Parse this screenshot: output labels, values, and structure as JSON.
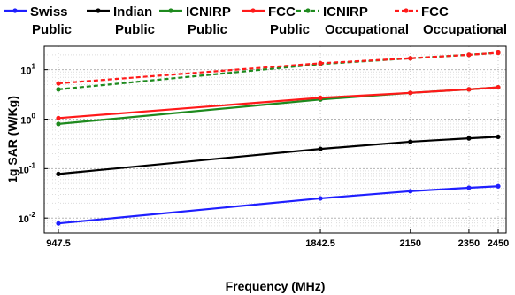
{
  "chart_data": {
    "type": "line",
    "xlabel": "Frequency (MHz)",
    "ylabel": "1g SAR (W/Kg)",
    "x_scale": "linear",
    "y_scale": "log",
    "xlim": [
      947.5,
      2450
    ],
    "ylim": [
      0.005,
      30
    ],
    "x_ticks": [
      947.5,
      1842.5,
      2150,
      2350,
      2450
    ],
    "x_tick_labels": [
      "947.5",
      "1842.5",
      "2150",
      "2350",
      "2450"
    ],
    "y_ticks": [
      {
        "base": "10",
        "exp": "-2",
        "value": 0.01
      },
      {
        "base": "10",
        "exp": "-1",
        "value": 0.1
      },
      {
        "base": "10",
        "exp": "0",
        "value": 1
      },
      {
        "base": "10",
        "exp": "1",
        "value": 10
      }
    ],
    "grid": true,
    "legend_position": "top",
    "x": [
      947.5,
      1842.5,
      2150,
      2350,
      2450
    ],
    "series": [
      {
        "legend_lines": [
          "Swiss",
          "Public"
        ],
        "color": "#1f1fff",
        "style": "solid",
        "values": [
          0.0078,
          0.025,
          0.035,
          0.041,
          0.044
        ]
      },
      {
        "legend_lines": [
          "Indian",
          "Public"
        ],
        "color": "#000000",
        "style": "solid",
        "values": [
          0.078,
          0.25,
          0.35,
          0.41,
          0.44
        ]
      },
      {
        "legend_lines": [
          "ICNIRP",
          "Public"
        ],
        "color": "#1e8a1e",
        "style": "solid",
        "values": [
          0.8,
          2.5,
          3.4,
          4.0,
          4.4
        ]
      },
      {
        "legend_lines": [
          "FCC",
          "Public"
        ],
        "color": "#ff1a1a",
        "style": "solid",
        "values": [
          1.05,
          2.7,
          3.4,
          4.0,
          4.4
        ]
      },
      {
        "legend_lines": [
          "ICNIRP",
          "Occupational"
        ],
        "color": "#1e8a1e",
        "style": "dashed",
        "values": [
          4.0,
          13,
          17,
          20,
          22
        ]
      },
      {
        "legend_lines": [
          "FCC",
          "Occupational"
        ],
        "color": "#ff1a1a",
        "style": "dashed",
        "values": [
          5.3,
          13.5,
          17,
          20,
          22
        ]
      }
    ]
  }
}
